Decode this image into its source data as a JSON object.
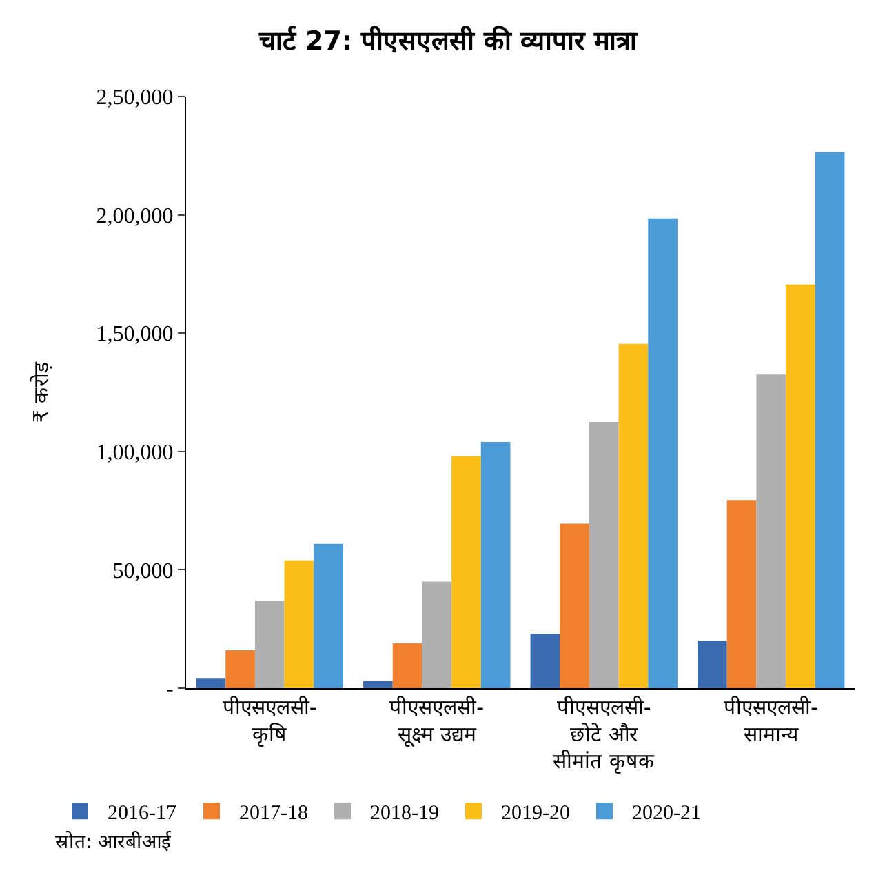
{
  "chart_data": {
    "type": "bar",
    "title": "चार्ट 27: पीएसएलसी की व्यापार मात्रा",
    "ylabel": "₹ करोड़",
    "categories": [
      "पीएसएलसी-\nकृषि",
      "पीएसएलसी-\nसूक्ष्म उद्यम",
      "पीएसएलसी-\nछोटे और\nसीमांत कृषक",
      "पीएसएलसी-\nसामान्य"
    ],
    "series": [
      {
        "name": "2016-17",
        "color": "#3a6ab0",
        "values": [
          4000,
          3000,
          23000,
          20000
        ]
      },
      {
        "name": "2017-18",
        "color": "#f07f2e",
        "values": [
          16000,
          19000,
          69500,
          79500
        ]
      },
      {
        "name": "2018-19",
        "color": "#b0b0b0",
        "values": [
          37000,
          45000,
          112500,
          132500
        ]
      },
      {
        "name": "2019-20",
        "color": "#fbbd17",
        "values": [
          54000,
          98000,
          145500,
          170500
        ]
      },
      {
        "name": "2020-21",
        "color": "#4a9bd8",
        "values": [
          61000,
          104000,
          198500,
          226500
        ]
      }
    ],
    "ylim": [
      0,
      250000
    ],
    "yticks": [
      {
        "value": 0,
        "label": "-"
      },
      {
        "value": 50000,
        "label": "50,000"
      },
      {
        "value": 100000,
        "label": "1,00,000"
      },
      {
        "value": 150000,
        "label": "1,50,000"
      },
      {
        "value": 200000,
        "label": "2,00,000"
      },
      {
        "value": 250000,
        "label": "2,50,000"
      }
    ],
    "legend": "bottom",
    "annotations": [
      "स्रोत: आरबीआई"
    ]
  }
}
